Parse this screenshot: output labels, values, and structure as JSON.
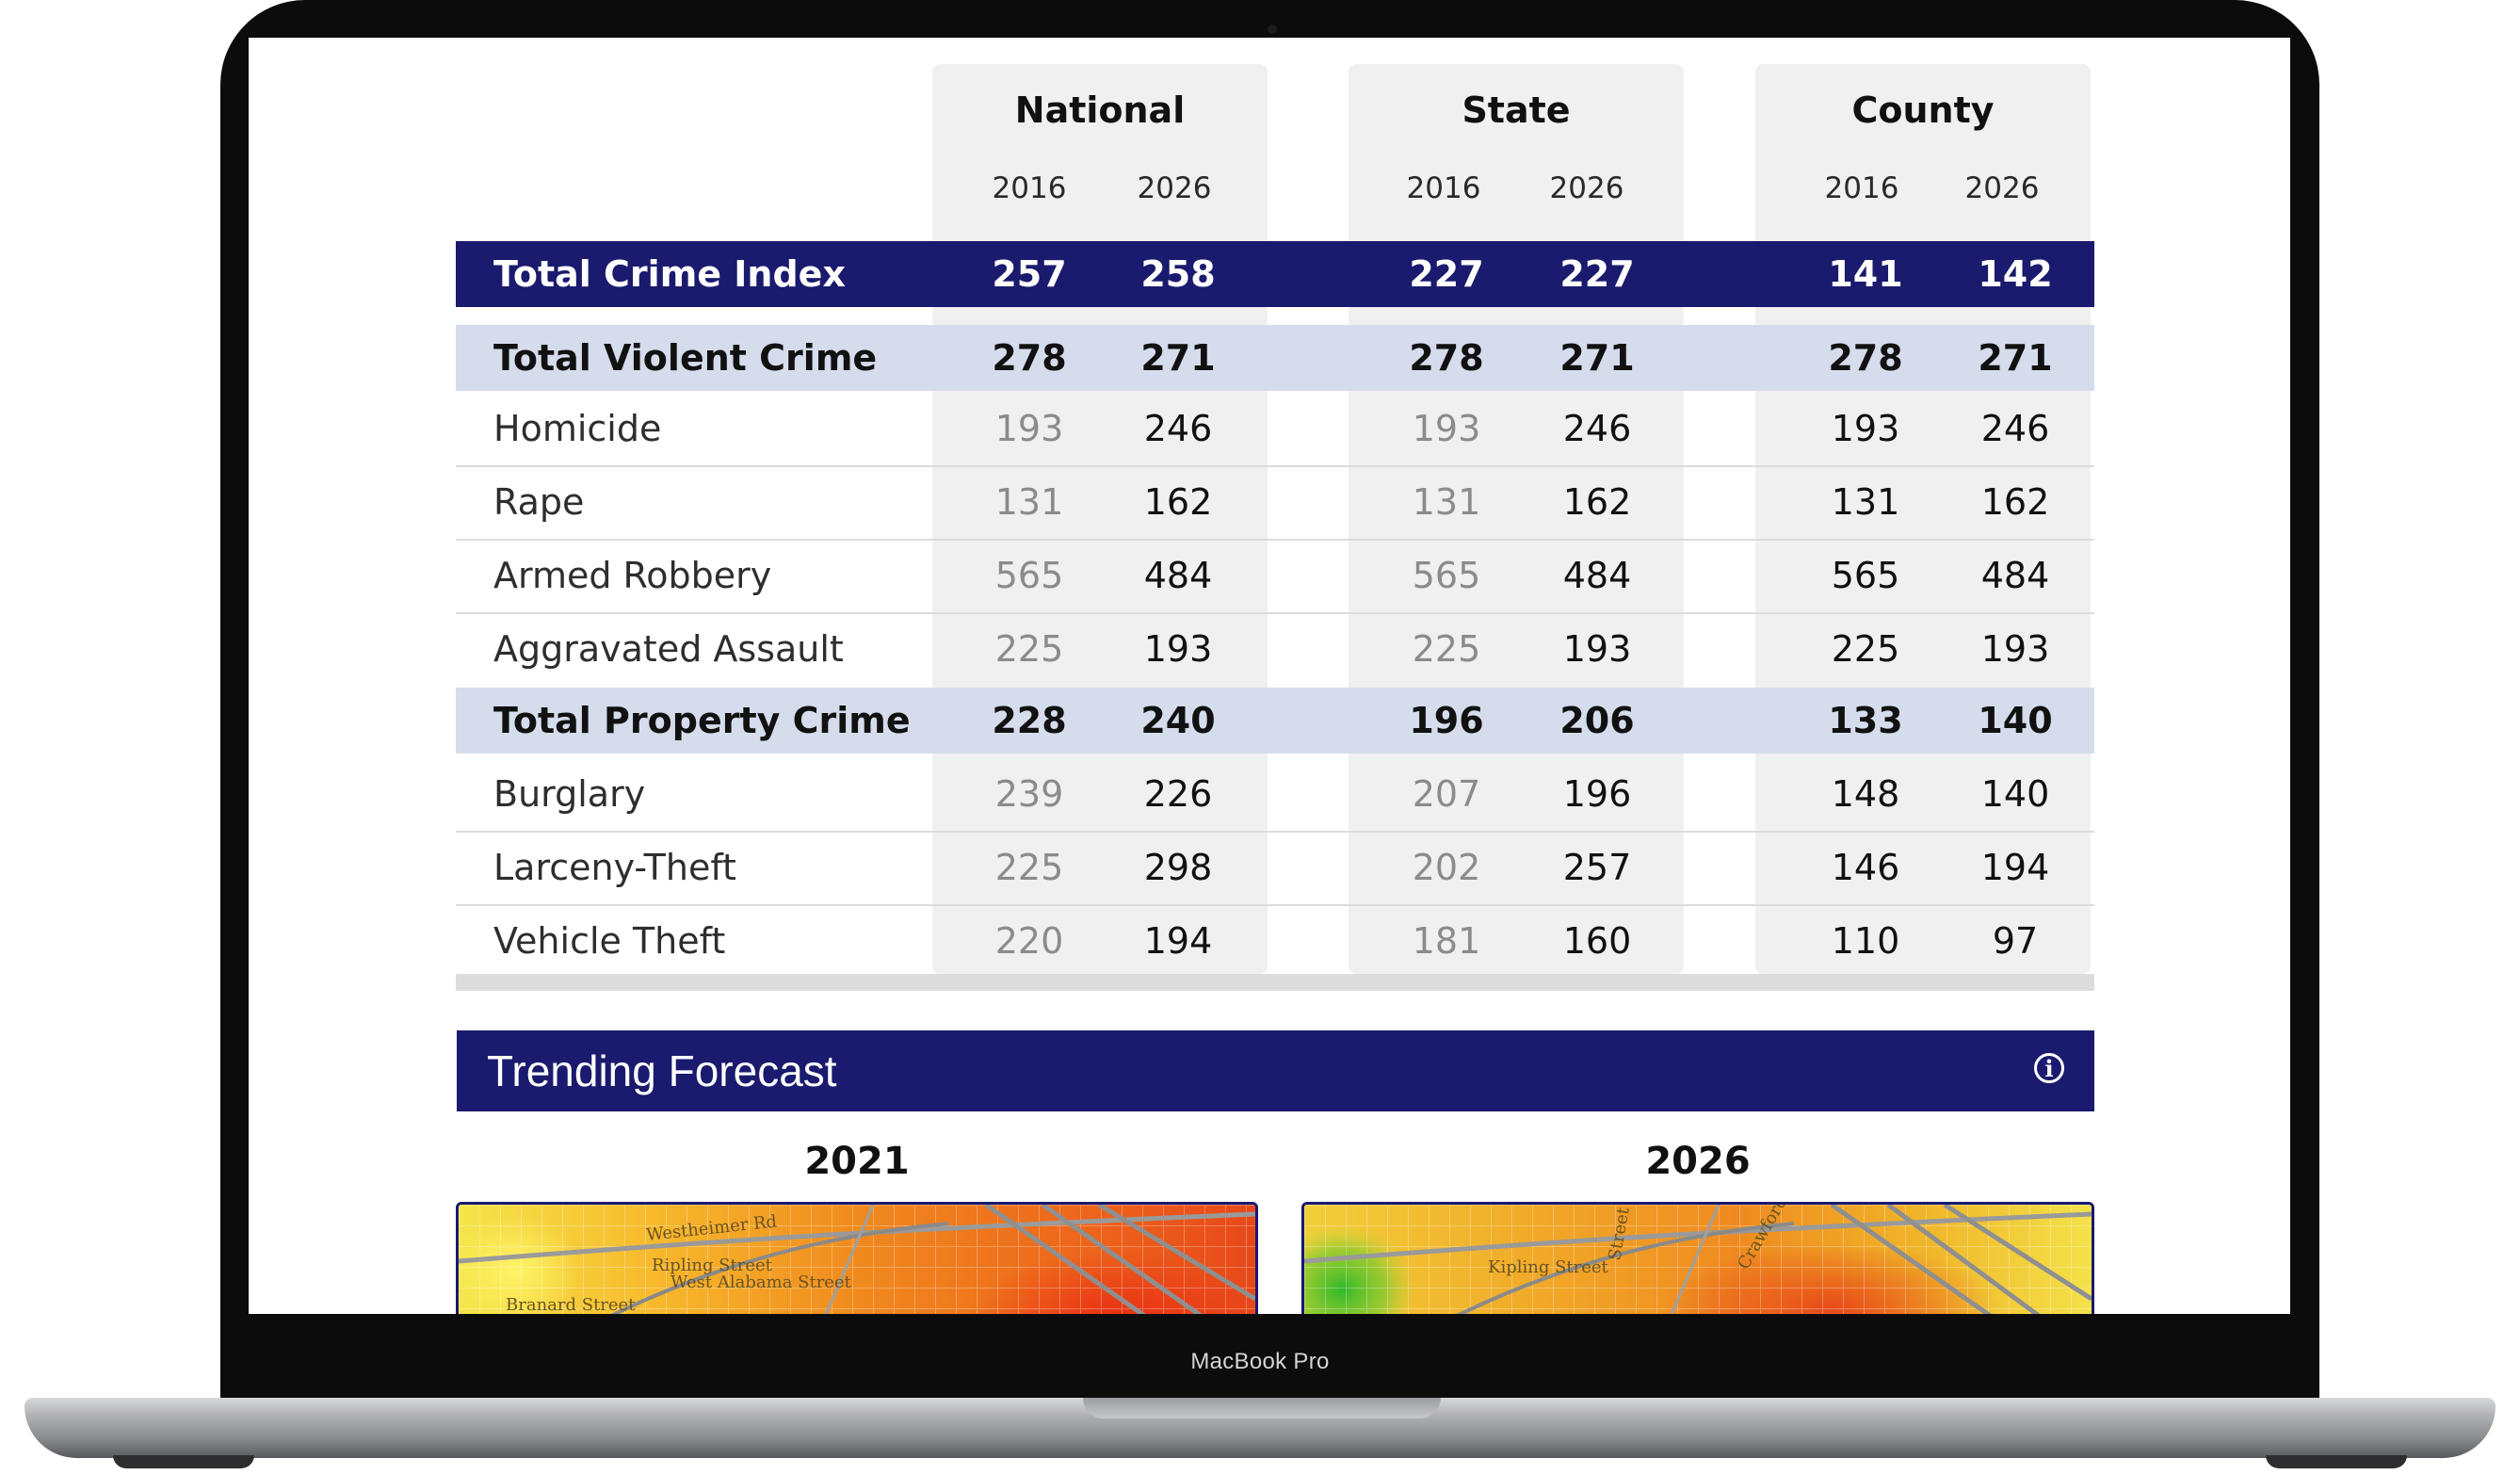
{
  "device": {
    "label": "MacBook Pro"
  },
  "table": {
    "groups": [
      {
        "name": "National",
        "years": [
          "2016",
          "2026"
        ]
      },
      {
        "name": "State",
        "years": [
          "2016",
          "2026"
        ]
      },
      {
        "name": "County",
        "years": [
          "2016",
          "2026"
        ]
      }
    ],
    "rows": [
      {
        "label": "Total Crime Index",
        "style": "band-dark",
        "values": [
          "257",
          "258",
          "227",
          "227",
          "141",
          "142"
        ]
      },
      {
        "label": "Total Violent Crime",
        "style": "band-light",
        "values": [
          "278",
          "271",
          "278",
          "271",
          "278",
          "271"
        ]
      },
      {
        "label": "Homicide",
        "style": "plain",
        "values": [
          "193",
          "246",
          "193",
          "246",
          "193",
          "246"
        ]
      },
      {
        "label": "Rape",
        "style": "plain",
        "values": [
          "131",
          "162",
          "131",
          "162",
          "131",
          "162"
        ]
      },
      {
        "label": "Armed Robbery",
        "style": "plain",
        "values": [
          "565",
          "484",
          "565",
          "484",
          "565",
          "484"
        ]
      },
      {
        "label": "Aggravated Assault",
        "style": "plain",
        "values": [
          "225",
          "193",
          "225",
          "193",
          "225",
          "193"
        ]
      },
      {
        "label": "Total Property Crime",
        "style": "band-light",
        "values": [
          "228",
          "240",
          "196",
          "206",
          "133",
          "140"
        ]
      },
      {
        "label": "Burglary",
        "style": "plain",
        "values": [
          "239",
          "226",
          "207",
          "196",
          "148",
          "140"
        ]
      },
      {
        "label": "Larceny-Theft",
        "style": "plain",
        "values": [
          "225",
          "298",
          "202",
          "257",
          "146",
          "194"
        ]
      },
      {
        "label": "Vehicle Theft",
        "style": "plain",
        "values": [
          "220",
          "194",
          "181",
          "160",
          "110",
          "97"
        ]
      }
    ]
  },
  "forecast": {
    "title": "Trending Forecast",
    "info_icon": "info-icon",
    "maps": [
      {
        "year": "2021",
        "streets": [
          "Westheimer Rd",
          "Ripling Street",
          "West Alabama Street",
          "Branard Street"
        ]
      },
      {
        "year": "2026",
        "streets": [
          "Kipling Street",
          "Crawford Street",
          "Street"
        ]
      }
    ]
  },
  "colors": {
    "navy": "#1a1a6e",
    "band_light": "#d5dcec",
    "column_gray": "#f0f0f0"
  }
}
